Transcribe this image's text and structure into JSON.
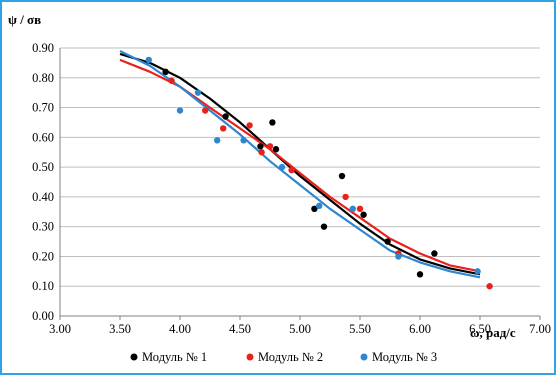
{
  "chart_data": {
    "type": "scatter",
    "xlabel": "ω, рад/с",
    "ylabel": "ψ / σв",
    "xlim": [
      3.0,
      7.0
    ],
    "ylim": [
      0.0,
      0.9
    ],
    "xticks": [
      "3.00",
      "3.50",
      "4.00",
      "4.50",
      "5.00",
      "5.50",
      "6.00",
      "6.50",
      "7.00"
    ],
    "yticks": [
      "0.00",
      "0.10",
      "0.20",
      "0.30",
      "0.40",
      "0.50",
      "0.60",
      "0.70",
      "0.80",
      "0.90"
    ],
    "grid": "horizontal",
    "legend_position": "bottom",
    "series": [
      {
        "name": "Модуль № 1",
        "color": "#000000",
        "points": [
          [
            3.88,
            0.82
          ],
          [
            4.38,
            0.67
          ],
          [
            4.67,
            0.57
          ],
          [
            4.77,
            0.65
          ],
          [
            4.8,
            0.56
          ],
          [
            5.12,
            0.36
          ],
          [
            5.2,
            0.3
          ],
          [
            5.35,
            0.47
          ],
          [
            5.53,
            0.34
          ],
          [
            5.73,
            0.25
          ],
          [
            6.12,
            0.21
          ],
          [
            6.0,
            0.14
          ]
        ],
        "trend": [
          [
            3.5,
            0.88
          ],
          [
            3.75,
            0.85
          ],
          [
            4.0,
            0.8
          ],
          [
            4.25,
            0.73
          ],
          [
            4.5,
            0.65
          ],
          [
            4.75,
            0.56
          ],
          [
            5.0,
            0.47
          ],
          [
            5.25,
            0.39
          ],
          [
            5.5,
            0.31
          ],
          [
            5.75,
            0.24
          ],
          [
            6.0,
            0.19
          ],
          [
            6.25,
            0.16
          ],
          [
            6.5,
            0.14
          ]
        ]
      },
      {
        "name": "Модуль № 2",
        "color": "#e8211c",
        "points": [
          [
            3.93,
            0.79
          ],
          [
            4.21,
            0.69
          ],
          [
            4.36,
            0.63
          ],
          [
            4.58,
            0.64
          ],
          [
            4.68,
            0.55
          ],
          [
            4.75,
            0.57
          ],
          [
            4.93,
            0.49
          ],
          [
            5.38,
            0.4
          ],
          [
            5.5,
            0.36
          ],
          [
            5.82,
            0.21
          ],
          [
            6.58,
            0.1
          ]
        ],
        "trend": [
          [
            3.5,
            0.86
          ],
          [
            3.75,
            0.82
          ],
          [
            4.0,
            0.77
          ],
          [
            4.25,
            0.7
          ],
          [
            4.5,
            0.63
          ],
          [
            4.75,
            0.56
          ],
          [
            5.0,
            0.48
          ],
          [
            5.25,
            0.4
          ],
          [
            5.5,
            0.33
          ],
          [
            5.75,
            0.26
          ],
          [
            6.0,
            0.21
          ],
          [
            6.25,
            0.17
          ],
          [
            6.5,
            0.15
          ]
        ]
      },
      {
        "name": "Модуль № 3",
        "color": "#2e86d0",
        "points": [
          [
            3.74,
            0.86
          ],
          [
            4.0,
            0.69
          ],
          [
            4.15,
            0.75
          ],
          [
            4.31,
            0.59
          ],
          [
            4.53,
            0.59
          ],
          [
            4.85,
            0.5
          ],
          [
            5.16,
            0.37
          ],
          [
            5.44,
            0.36
          ],
          [
            5.82,
            0.2
          ],
          [
            6.48,
            0.15
          ]
        ],
        "trend": [
          [
            3.5,
            0.89
          ],
          [
            3.75,
            0.84
          ],
          [
            4.0,
            0.77
          ],
          [
            4.25,
            0.69
          ],
          [
            4.5,
            0.61
          ],
          [
            4.75,
            0.52
          ],
          [
            5.0,
            0.44
          ],
          [
            5.25,
            0.36
          ],
          [
            5.5,
            0.29
          ],
          [
            5.75,
            0.22
          ],
          [
            6.0,
            0.18
          ],
          [
            6.25,
            0.15
          ],
          [
            6.5,
            0.13
          ]
        ]
      }
    ]
  }
}
